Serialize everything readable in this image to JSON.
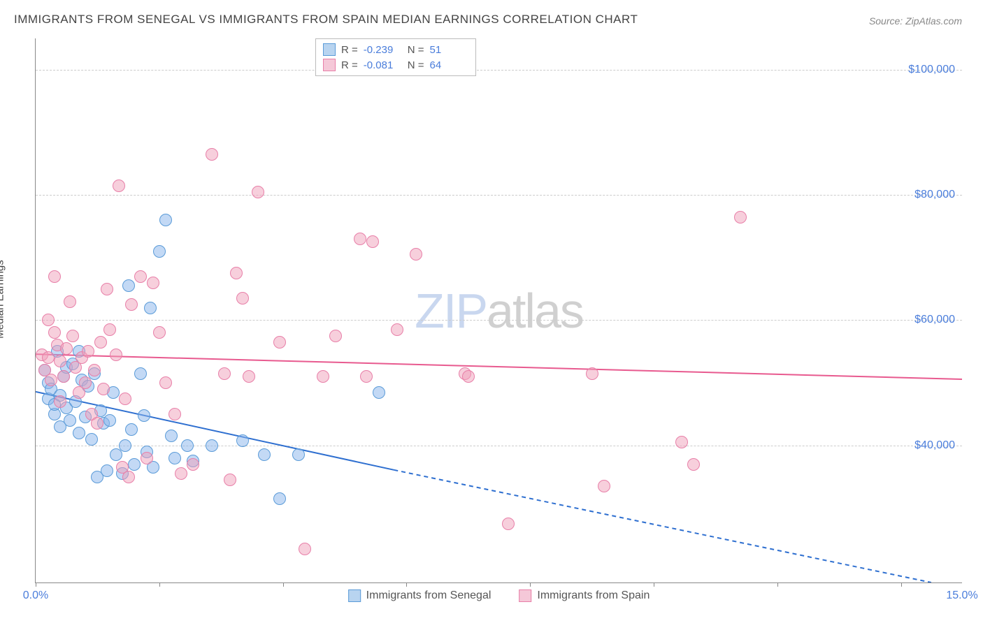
{
  "title": "IMMIGRANTS FROM SENEGAL VS IMMIGRANTS FROM SPAIN MEDIAN EARNINGS CORRELATION CHART",
  "source": "Source: ZipAtlas.com",
  "ylabel": "Median Earnings",
  "watermark": {
    "part1": "ZIP",
    "part2": "atlas"
  },
  "chart": {
    "type": "scatter",
    "xlim": [
      0,
      15
    ],
    "ylim": [
      18000,
      105000
    ],
    "background_color": "#ffffff",
    "grid_color": "#cccccc",
    "axis_color": "#888888",
    "tick_label_color": "#4a7ddb",
    "tick_fontsize": 16,
    "y_gridlines": [
      40000,
      60000,
      80000,
      100000
    ],
    "y_tick_labels": [
      "$40,000",
      "$60,000",
      "$80,000",
      "$100,000"
    ],
    "x_ticks": [
      0,
      2,
      4,
      6,
      8,
      10,
      12,
      14
    ],
    "x_tick_labels": {
      "0": "0.0%",
      "15": "15.0%"
    },
    "point_radius": 9,
    "point_stroke_width": 1.5,
    "series": [
      {
        "name": "Immigrants from Senegal",
        "fill": "rgba(135,180,235,0.5)",
        "stroke": "#5a9bd8",
        "swatch_fill": "#b8d4f0",
        "swatch_border": "#5a9bd8",
        "R": "-0.239",
        "N": "51",
        "trend": {
          "color": "#2e6fd0",
          "width": 2,
          "solid": {
            "x1": 0,
            "y1": 48500,
            "x2": 5.8,
            "y2": 36000
          },
          "dashed": {
            "x1": 5.8,
            "y1": 36000,
            "x2": 14.5,
            "y2": 18000
          }
        },
        "points": [
          [
            0.15,
            52000
          ],
          [
            0.2,
            47500
          ],
          [
            0.2,
            50000
          ],
          [
            0.25,
            49000
          ],
          [
            0.3,
            45000
          ],
          [
            0.3,
            46500
          ],
          [
            0.35,
            55000
          ],
          [
            0.4,
            48000
          ],
          [
            0.4,
            43000
          ],
          [
            0.45,
            51000
          ],
          [
            0.5,
            52500
          ],
          [
            0.5,
            46000
          ],
          [
            0.55,
            44000
          ],
          [
            0.6,
            53000
          ],
          [
            0.65,
            47000
          ],
          [
            0.7,
            55000
          ],
          [
            0.7,
            42000
          ],
          [
            0.75,
            50500
          ],
          [
            0.8,
            44500
          ],
          [
            0.85,
            49500
          ],
          [
            0.9,
            41000
          ],
          [
            0.95,
            51500
          ],
          [
            1.0,
            35000
          ],
          [
            1.05,
            45500
          ],
          [
            1.1,
            43500
          ],
          [
            1.15,
            36000
          ],
          [
            1.2,
            44000
          ],
          [
            1.25,
            48500
          ],
          [
            1.3,
            38500
          ],
          [
            1.4,
            35500
          ],
          [
            1.45,
            40000
          ],
          [
            1.5,
            65500
          ],
          [
            1.55,
            42500
          ],
          [
            1.6,
            37000
          ],
          [
            1.7,
            51500
          ],
          [
            1.75,
            44800
          ],
          [
            1.8,
            39000
          ],
          [
            1.85,
            62000
          ],
          [
            1.9,
            36500
          ],
          [
            2.0,
            71000
          ],
          [
            2.1,
            76000
          ],
          [
            2.2,
            41500
          ],
          [
            2.25,
            38000
          ],
          [
            2.45,
            40000
          ],
          [
            2.55,
            37500
          ],
          [
            2.85,
            40000
          ],
          [
            3.35,
            40800
          ],
          [
            3.7,
            38500
          ],
          [
            3.95,
            31500
          ],
          [
            4.25,
            38500
          ],
          [
            5.55,
            48500
          ]
        ]
      },
      {
        "name": "Immigrants from Spain",
        "fill": "rgba(240,160,185,0.5)",
        "stroke": "#e87fa8",
        "swatch_fill": "#f5c8d8",
        "swatch_border": "#e87fa8",
        "R": "-0.081",
        "N": "64",
        "trend": {
          "color": "#e85a8f",
          "width": 2,
          "solid": {
            "x1": 0,
            "y1": 54500,
            "x2": 15,
            "y2": 50500
          }
        },
        "points": [
          [
            0.1,
            54500
          ],
          [
            0.15,
            52000
          ],
          [
            0.2,
            60000
          ],
          [
            0.2,
            54000
          ],
          [
            0.25,
            50500
          ],
          [
            0.3,
            67000
          ],
          [
            0.3,
            58000
          ],
          [
            0.35,
            56000
          ],
          [
            0.4,
            53500
          ],
          [
            0.4,
            47000
          ],
          [
            0.45,
            51000
          ],
          [
            0.5,
            55500
          ],
          [
            0.55,
            63000
          ],
          [
            0.6,
            57500
          ],
          [
            0.65,
            52500
          ],
          [
            0.7,
            48500
          ],
          [
            0.75,
            54000
          ],
          [
            0.8,
            50000
          ],
          [
            0.85,
            55000
          ],
          [
            0.9,
            45000
          ],
          [
            0.95,
            52000
          ],
          [
            1.0,
            43500
          ],
          [
            1.05,
            56500
          ],
          [
            1.1,
            49000
          ],
          [
            1.15,
            65000
          ],
          [
            1.2,
            58500
          ],
          [
            1.3,
            54500
          ],
          [
            1.35,
            81500
          ],
          [
            1.4,
            36500
          ],
          [
            1.45,
            47500
          ],
          [
            1.5,
            35000
          ],
          [
            1.55,
            62500
          ],
          [
            1.7,
            67000
          ],
          [
            1.8,
            38000
          ],
          [
            1.9,
            66000
          ],
          [
            2.0,
            58000
          ],
          [
            2.1,
            50000
          ],
          [
            2.25,
            45000
          ],
          [
            2.35,
            35500
          ],
          [
            2.55,
            37000
          ],
          [
            2.85,
            86500
          ],
          [
            3.05,
            51500
          ],
          [
            3.15,
            34500
          ],
          [
            3.25,
            67500
          ],
          [
            3.35,
            63500
          ],
          [
            3.45,
            51000
          ],
          [
            3.6,
            80500
          ],
          [
            3.95,
            56500
          ],
          [
            4.35,
            23500
          ],
          [
            4.65,
            51000
          ],
          [
            4.85,
            57500
          ],
          [
            5.25,
            73000
          ],
          [
            5.35,
            51000
          ],
          [
            5.45,
            72500
          ],
          [
            5.85,
            58500
          ],
          [
            6.15,
            70500
          ],
          [
            6.95,
            51500
          ],
          [
            7.65,
            27500
          ],
          [
            9.0,
            51500
          ],
          [
            9.2,
            33500
          ],
          [
            10.45,
            40500
          ],
          [
            10.65,
            37000
          ],
          [
            11.4,
            76500
          ],
          [
            7.0,
            51000
          ]
        ]
      }
    ]
  }
}
